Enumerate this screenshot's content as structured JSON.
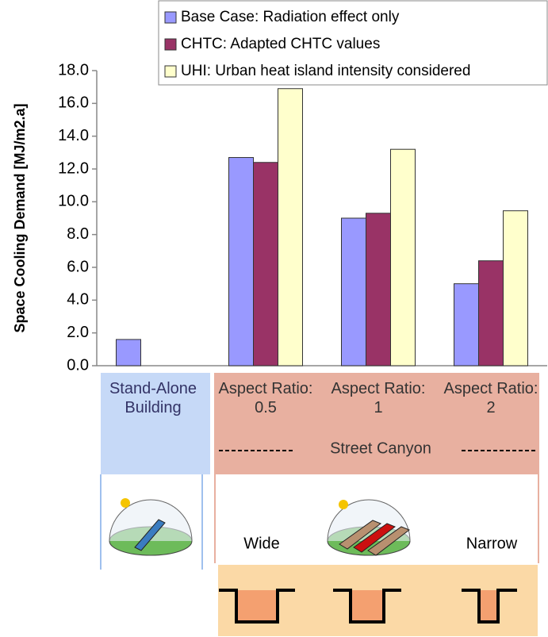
{
  "chart_data": {
    "type": "bar",
    "y_label": "Space Cooling Demand [MJ/m2.a]",
    "categories": [
      "Stand-Alone Building",
      "Aspect Ratio: 0.5",
      "Aspect Ratio: 1",
      "Aspect Ratio: 2"
    ],
    "series": [
      {
        "name": "Base Case: Radiation effect only",
        "color": "#9999ff",
        "values": [
          1.6,
          12.7,
          9.0,
          5.0
        ]
      },
      {
        "name": "CHTC: Adapted CHTC values",
        "color": "#993366",
        "values": [
          null,
          12.4,
          9.3,
          6.4
        ]
      },
      {
        "name": "UHI: Urban heat island intensity considered",
        "color": "#ffffcc",
        "values": [
          null,
          16.9,
          13.2,
          9.45
        ]
      }
    ],
    "ylim": [
      0,
      18
    ],
    "yticks": [
      {
        "value": 0,
        "label": "0.0"
      },
      {
        "value": 2,
        "label": "2.0"
      },
      {
        "value": 4,
        "label": "4.0"
      },
      {
        "value": 6,
        "label": "6.0"
      },
      {
        "value": 8,
        "label": "8.0"
      },
      {
        "value": 10,
        "label": "10.0"
      },
      {
        "value": 12,
        "label": "12.0"
      },
      {
        "value": 14,
        "label": "14.0"
      },
      {
        "value": 16,
        "label": "16.0"
      },
      {
        "value": 18,
        "label": "18.0"
      }
    ],
    "grid": false,
    "legend": "top right"
  },
  "diagram": {
    "street_canyon": "Street Canyon",
    "wide": "Wide",
    "narrow": "Narrow"
  }
}
